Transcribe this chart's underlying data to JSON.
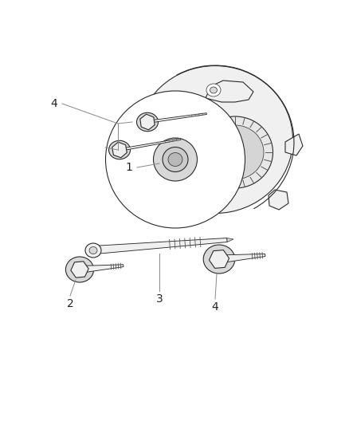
{
  "background_color": "#ffffff",
  "fig_width": 4.38,
  "fig_height": 5.33,
  "dpi": 100,
  "line_color": "#2a2a2a",
  "line_color_light": "#888888",
  "fill_white": "#ffffff",
  "fill_light": "#f0f0f0",
  "fill_mid": "#d8d8d8",
  "fill_dark": "#b0b0b0",
  "label_fs": 10,
  "text_color": "#222222",
  "leader_color": "#888888"
}
